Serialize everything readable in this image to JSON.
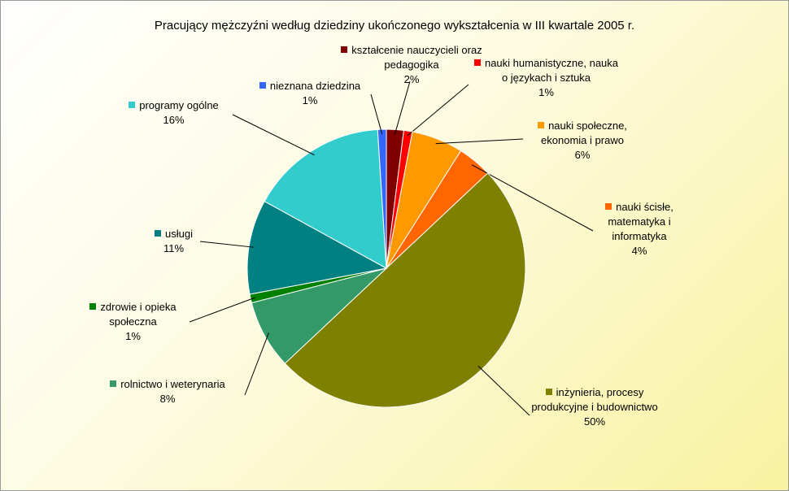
{
  "chart_data": {
    "type": "pie",
    "title": "Pracujący mężczyźni według dziedziny ukończonego wykształcenia w III kwartale 2005 r.",
    "categories": [
      "kształcenie nauczycieli oraz pedagogika",
      "nauki humanistyczne, nauka o językach i sztuka",
      "nauki społeczne, ekonomia i prawo",
      "nauki ścisłe, matematyka i informatyka",
      "inżynieria, procesy produkcyjne i budownictwo",
      "rolnictwo i weterynaria",
      "zdrowie i opieka społeczna",
      "usługi",
      "programy ogólne",
      "nieznana dziedzina"
    ],
    "values": [
      2,
      1,
      6,
      4,
      50,
      8,
      1,
      11,
      16,
      1
    ],
    "value_labels": [
      "2%",
      "1%",
      "6%",
      "4%",
      "50%",
      "8%",
      "1%",
      "11%",
      "16%",
      "1%"
    ],
    "colors": [
      "#800000",
      "#ff0000",
      "#ff9900",
      "#ff6600",
      "#808000",
      "#339966",
      "#008000",
      "#008080",
      "#33cccc",
      "#3366ff"
    ]
  }
}
